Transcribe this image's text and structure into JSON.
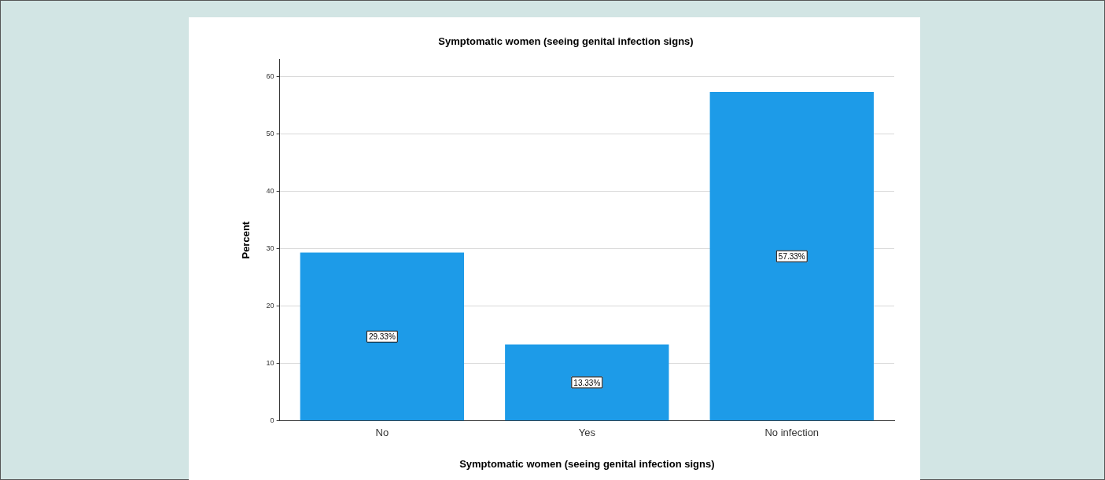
{
  "chart_data": {
    "type": "bar",
    "title": "Symptomatic women (seeing genital infection signs)",
    "xlabel": "Symptomatic women (seeing genital infection signs)",
    "ylabel": "Percent",
    "categories": [
      "No",
      "Yes",
      "No infection"
    ],
    "values": [
      29.33,
      13.33,
      57.33
    ],
    "value_labels": [
      "29.33%",
      "13.33%",
      "57.33%"
    ],
    "color": "#1d9be8",
    "ylim": [
      0,
      63
    ],
    "yticks": [
      0,
      10,
      20,
      30,
      40,
      50,
      60
    ],
    "grid": "y"
  }
}
